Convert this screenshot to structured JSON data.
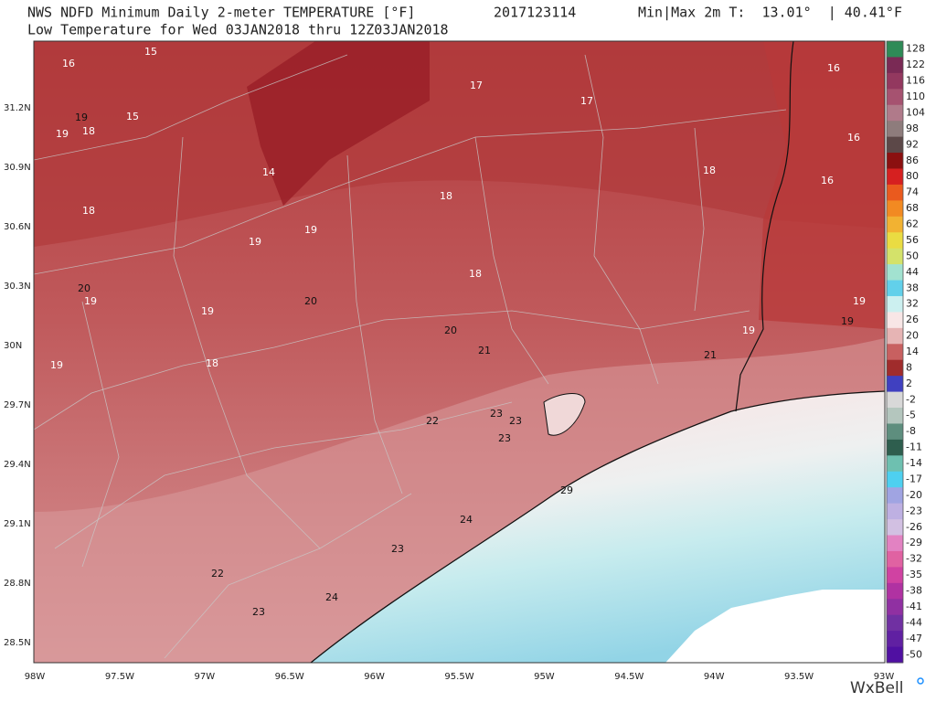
{
  "header": {
    "title": "NWS NDFD Minimum Daily 2-meter TEMPERATURE [°F]",
    "run": "2017123114",
    "minmax": "Min|Max 2m T:  13.01°  | 40.41°F",
    "subtitle": "Low Temperature for Wed 03JAN2018 thru 12Z03JAN2018"
  },
  "map": {
    "lat_labels": [
      "31.2N",
      "30.9N",
      "30.6N",
      "30.3N",
      "30N",
      "29.7N",
      "29.4N",
      "29.1N",
      "28.8N",
      "28.5N"
    ],
    "lon_labels": [
      "98W",
      "97.5W",
      "97W",
      "96.5W",
      "96W",
      "95.5W",
      "95W",
      "94.5W",
      "94W",
      "93.5W",
      "93W"
    ],
    "point_labels": [
      {
        "value": 16,
        "color": "#ffffff"
      },
      {
        "value": 15,
        "color": "#ffffff"
      },
      {
        "value": 19,
        "color": "#111111"
      },
      {
        "value": 15,
        "color": "#ffffff"
      },
      {
        "value": 19,
        "color": "#ffffff"
      },
      {
        "value": 18,
        "color": "#ffffff"
      },
      {
        "value": 14,
        "color": "#ffffff"
      },
      {
        "value": 17,
        "color": "#ffffff"
      },
      {
        "value": 17,
        "color": "#ffffff"
      },
      {
        "value": 16,
        "color": "#ffffff"
      },
      {
        "value": 16,
        "color": "#ffffff"
      },
      {
        "value": 18,
        "color": "#ffffff"
      },
      {
        "value": 16,
        "color": "#ffffff"
      },
      {
        "value": 18,
        "color": "#ffffff"
      },
      {
        "value": 19,
        "color": "#ffffff"
      },
      {
        "value": 19,
        "color": "#ffffff"
      },
      {
        "value": 18,
        "color": "#ffffff"
      },
      {
        "value": 18,
        "color": "#ffffff"
      },
      {
        "value": 20,
        "color": "#111111"
      },
      {
        "value": 19,
        "color": "#ffffff"
      },
      {
        "value": 20,
        "color": "#111111"
      },
      {
        "value": 19,
        "color": "#ffffff"
      },
      {
        "value": 19,
        "color": "#ffffff"
      },
      {
        "value": 19,
        "color": "#111111"
      },
      {
        "value": 19,
        "color": "#ffffff"
      },
      {
        "value": 20,
        "color": "#111111"
      },
      {
        "value": 21,
        "color": "#111111"
      },
      {
        "value": 21,
        "color": "#111111"
      },
      {
        "value": 19,
        "color": "#ffffff"
      },
      {
        "value": 18,
        "color": "#ffffff"
      },
      {
        "value": 22,
        "color": "#111111"
      },
      {
        "value": 23,
        "color": "#111111"
      },
      {
        "value": 23,
        "color": "#111111"
      },
      {
        "value": 23,
        "color": "#111111"
      },
      {
        "value": 29,
        "color": "#111111"
      },
      {
        "value": 24,
        "color": "#111111"
      },
      {
        "value": 23,
        "color": "#111111"
      },
      {
        "value": 22,
        "color": "#111111"
      },
      {
        "value": 24,
        "color": "#111111"
      },
      {
        "value": 23,
        "color": "#111111"
      }
    ]
  },
  "colorbar": [
    {
      "value": 128,
      "color": "#2e8b57"
    },
    {
      "value": 122,
      "color": "#7a2a55"
    },
    {
      "value": 116,
      "color": "#93385f"
    },
    {
      "value": 110,
      "color": "#a65270"
    },
    {
      "value": 104,
      "color": "#b07a8a"
    },
    {
      "value": 98,
      "color": "#8e7c7c"
    },
    {
      "value": 92,
      "color": "#5c4848"
    },
    {
      "value": 86,
      "color": "#8b1010"
    },
    {
      "value": 80,
      "color": "#d62020"
    },
    {
      "value": 74,
      "color": "#ea5a1e"
    },
    {
      "value": 68,
      "color": "#f28a22"
    },
    {
      "value": 62,
      "color": "#f2b232"
    },
    {
      "value": 56,
      "color": "#eadc42"
    },
    {
      "value": 50,
      "color": "#d4e26a"
    },
    {
      "value": 44,
      "color": "#a2e2d0"
    },
    {
      "value": 38,
      "color": "#62d0ea"
    },
    {
      "value": 32,
      "color": "#ccf0f0"
    },
    {
      "value": 26,
      "color": "#f8e6e6"
    },
    {
      "value": 20,
      "color": "#e6b4b4"
    },
    {
      "value": 14,
      "color": "#c86060"
    },
    {
      "value": 8,
      "color": "#a02c2c"
    },
    {
      "value": 2,
      "color": "#4040c0"
    },
    {
      "value": -2,
      "color": "#d8d8d8"
    },
    {
      "value": -5,
      "color": "#b4c6be"
    },
    {
      "value": -8,
      "color": "#5e8e7e"
    },
    {
      "value": -11,
      "color": "#2e5e4e"
    },
    {
      "value": -14,
      "color": "#6ec0b0"
    },
    {
      "value": -17,
      "color": "#4ed0f0"
    },
    {
      "value": -20,
      "color": "#a0a4e2"
    },
    {
      "value": -23,
      "color": "#beb0e2"
    },
    {
      "value": -26,
      "color": "#d2c0e2"
    },
    {
      "value": -29,
      "color": "#e282c2"
    },
    {
      "value": -32,
      "color": "#e062a2"
    },
    {
      "value": -35,
      "color": "#d042a2"
    },
    {
      "value": -38,
      "color": "#b032a2"
    },
    {
      "value": -41,
      "color": "#9030a2"
    },
    {
      "value": -44,
      "color": "#7030a2"
    },
    {
      "value": -47,
      "color": "#6020a2"
    },
    {
      "value": -50,
      "color": "#5010a2"
    }
  ],
  "logo": "WxBell"
}
